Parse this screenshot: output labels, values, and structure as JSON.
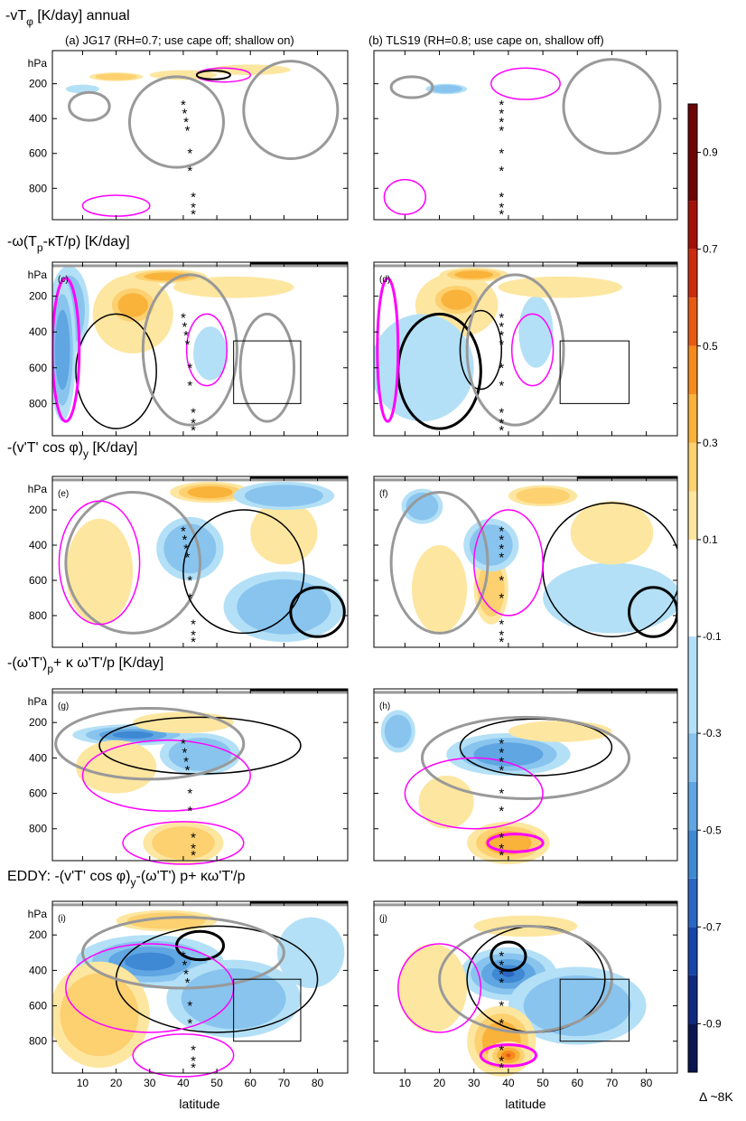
{
  "chart_data": {
    "type": "heatmap",
    "units": "K/day",
    "rows": [
      {
        "title": "-vT",
        "title_sub": "φ",
        "title_tail": " [K/day]   annual"
      },
      {
        "title": "-ω(T",
        "title_sub": "p",
        "title_tail": "-κT/p) [K/day]"
      },
      {
        "title": "-(v'T' cos  φ)",
        "title_sub": "y",
        "title_tail": " [K/day]"
      },
      {
        "title": "-(ω'T')",
        "title_sub": "p",
        "title_tail": "+ κ ω'T'/p  [K/day]"
      },
      {
        "title": "EDDY: -(v'T' cos  φ)",
        "title_sub": "y",
        "title_tail": "-(ω'T') p+ κω'T'/p"
      }
    ],
    "columns": [
      {
        "title": "(a) JG17 (RH=0.7; use cape  off; shallow on)"
      },
      {
        "title": "(b) TLS19 (RH=0.8; use cape on, shallow off)"
      }
    ],
    "panel_labels": [
      "(c)",
      "(d)",
      "(e)",
      "(f)",
      "(g)",
      "(h)",
      "(i)",
      "(j)"
    ],
    "y_unit_label": "hPa",
    "y_ticks": [
      200,
      400,
      600,
      800
    ],
    "ylim": [
      980,
      10
    ],
    "x_ticks": [
      10,
      20,
      30,
      40,
      50,
      60,
      70,
      80
    ],
    "xlim": [
      1,
      89
    ],
    "xlabel": "latitude",
    "colorbar": {
      "ticks": [
        "0.9",
        "0.7",
        "0.5",
        "0.3",
        "0.1",
        "-0.1",
        "-0.3",
        "-0.5",
        "-0.7",
        "-0.9"
      ],
      "range": [
        -1.0,
        1.0
      ],
      "colors": [
        "#0a1650",
        "#102a80",
        "#1745a8",
        "#2a66c2",
        "#3f88d4",
        "#5fa6e2",
        "#88c4ee",
        "#b3e0f6",
        "#ffffff",
        "#fde6a0",
        "#fdd070",
        "#f9b23a",
        "#f58a1d",
        "#e85a12",
        "#cc2c0c",
        "#a31008",
        "#6e0404"
      ]
    },
    "annotation": "Δ ~8K",
    "star_latitude": {
      "left": 42,
      "right": 38
    },
    "box": {
      "lat": [
        55,
        75
      ],
      "p": [
        450,
        800
      ],
      "panels": [
        1,
        4
      ]
    }
  }
}
